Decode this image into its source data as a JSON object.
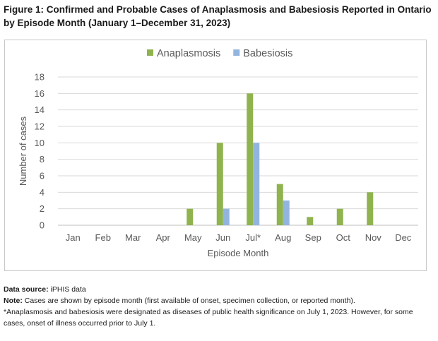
{
  "figure": {
    "title": "Figure 1: Confirmed and Probable Cases of Anaplasmosis and Babesiosis Reported in Ontario by Episode Month (January 1–December 31, 2023)"
  },
  "chart_data": {
    "type": "bar",
    "title": "",
    "xlabel": "Episode Month",
    "ylabel": "Number of cases",
    "ylim": [
      0,
      18
    ],
    "yticks": [
      0,
      2,
      4,
      6,
      8,
      10,
      12,
      14,
      16,
      18
    ],
    "grid": true,
    "legend_position": "top-center",
    "categories": [
      "Jan",
      "Feb",
      "Mar",
      "Apr",
      "May",
      "Jun",
      "Jul*",
      "Aug",
      "Sep",
      "Oct",
      "Nov",
      "Dec"
    ],
    "series": [
      {
        "name": "Anaplasmosis",
        "color": "#8fb34e",
        "values": [
          0,
          0,
          0,
          0,
          2,
          10,
          16,
          5,
          1,
          2,
          4,
          0
        ]
      },
      {
        "name": "Babesiosis",
        "color": "#92b5e0",
        "values": [
          0,
          0,
          0,
          0,
          0,
          2,
          10,
          3,
          0,
          0,
          0,
          0
        ]
      }
    ]
  },
  "notes": {
    "source_label": "Data source:",
    "source_text": " iPHIS data",
    "note_label": "Note:",
    "note_text": " Cases are shown by episode month (first available of onset, specimen collection, or reported month).",
    "footnote": "*Anaplasmosis and babesiosis were designated as diseases of public health significance on July 1, 2023. However, for some cases, onset of illness occurred prior to July 1."
  }
}
